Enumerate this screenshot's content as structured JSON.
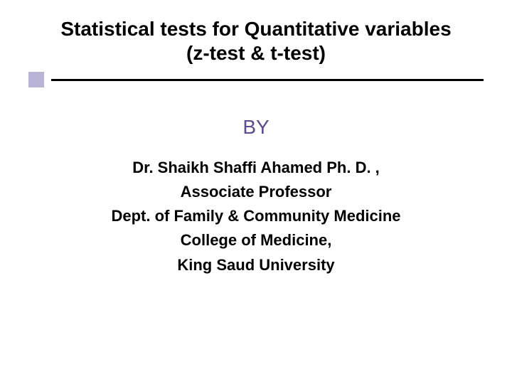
{
  "title": {
    "line1": "Statistical tests for Quantitative variables",
    "line2": "(z-test & t-test)"
  },
  "by_label": "BY",
  "author": {
    "name": "Dr. Shaikh  Shaffi  Ahamed Ph. D. ,",
    "role": "Associate Professor",
    "dept": "Dept. of Family & Community Medicine",
    "college": "College of Medicine,",
    "university": "King Saud University"
  },
  "colors": {
    "text": "#000000",
    "accent": "#5c4d8a",
    "square": "#b9b3d5",
    "line": "#000000",
    "background": "#ffffff"
  },
  "fonts": {
    "title_size_pt": 28,
    "by_size_pt": 28,
    "author_size_pt": 22,
    "family": "Arial"
  }
}
